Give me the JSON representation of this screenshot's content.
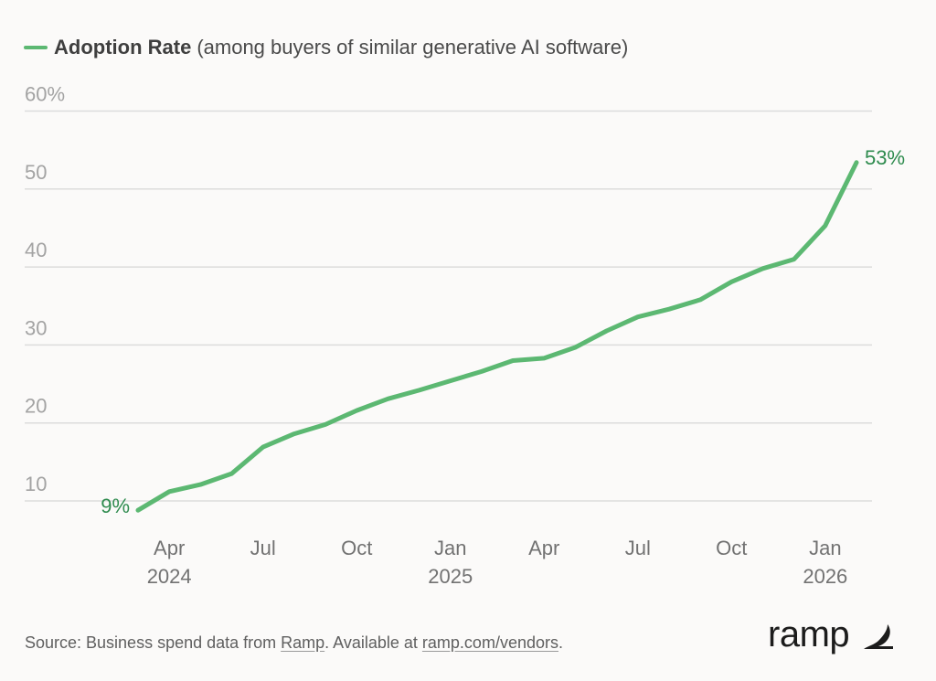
{
  "legend": {
    "series_label": "Adoption Rate",
    "series_note": "(among buyers of similar generative AI software)",
    "color": "#5cb872"
  },
  "chart_data": {
    "type": "line",
    "title": "Adoption Rate (among buyers of similar generative AI software)",
    "xlabel": "",
    "ylabel": "",
    "ylim": [
      8,
      60
    ],
    "y_ticks": [
      10,
      20,
      30,
      40,
      50,
      60
    ],
    "y_tick_labels": [
      "10",
      "20",
      "30",
      "40",
      "50",
      "60%"
    ],
    "grid": true,
    "legend_position": "top-left",
    "x": [
      "2024-03",
      "2024-04",
      "2024-05",
      "2024-06",
      "2024-07",
      "2024-08",
      "2024-09",
      "2024-10",
      "2024-11",
      "2024-12",
      "2025-01",
      "2025-02",
      "2025-03",
      "2025-04",
      "2025-05",
      "2025-06",
      "2025-07",
      "2025-08",
      "2025-09",
      "2025-10",
      "2025-11",
      "2025-12",
      "2026-01",
      "2026-02"
    ],
    "x_ticks": [
      {
        "index": 1,
        "label": "Apr",
        "sublabel": "2024"
      },
      {
        "index": 4,
        "label": "Jul",
        "sublabel": ""
      },
      {
        "index": 7,
        "label": "Oct",
        "sublabel": ""
      },
      {
        "index": 10,
        "label": "Jan",
        "sublabel": "2025"
      },
      {
        "index": 13,
        "label": "Apr",
        "sublabel": ""
      },
      {
        "index": 16,
        "label": "Jul",
        "sublabel": ""
      },
      {
        "index": 19,
        "label": "Oct",
        "sublabel": ""
      },
      {
        "index": 22,
        "label": "Jan",
        "sublabel": "2026"
      }
    ],
    "series": [
      {
        "name": "Adoption Rate",
        "color": "#5cb872",
        "values": [
          8.8,
          11.2,
          12.1,
          13.5,
          16.9,
          18.6,
          19.8,
          21.6,
          23.1,
          24.2,
          25.4,
          26.6,
          28.0,
          28.3,
          29.7,
          31.8,
          33.6,
          34.6,
          35.8,
          38.1,
          39.8,
          41.0,
          45.3,
          53.4
        ]
      }
    ],
    "annotations": [
      {
        "index": 0,
        "text": "9%",
        "color": "#2e8b4e"
      },
      {
        "index": 23,
        "text": "53%",
        "color": "#2e8b4e"
      }
    ]
  },
  "footer": {
    "source_prefix": "Source: Business spend data from ",
    "source_link": "Ramp",
    "source_middle": ". Available at ",
    "source_url_text": "ramp.com/vendors",
    "source_suffix": "."
  },
  "brand": {
    "name": "ramp",
    "logo_icon": "ramp-logo-icon"
  }
}
